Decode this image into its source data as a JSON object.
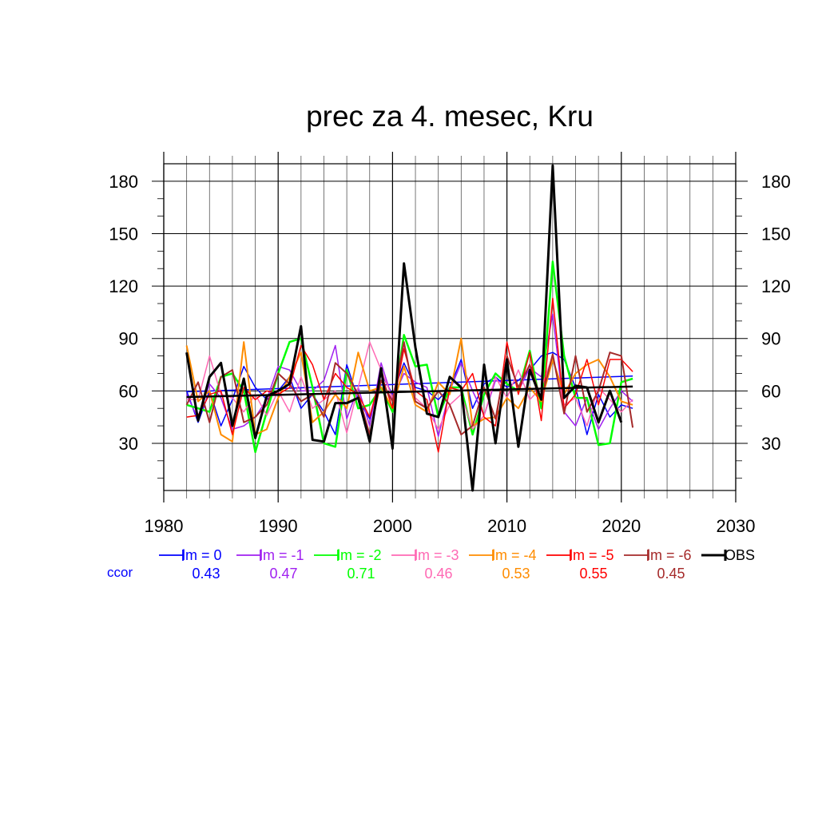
{
  "chart_data": {
    "type": "line",
    "title": "prec za 4. mesec, Kru",
    "xlim": [
      1980,
      2030
    ],
    "ylim": [
      3,
      190
    ],
    "x_ticks": [
      1980,
      1990,
      2000,
      2010,
      2020,
      2030
    ],
    "y_ticks": [
      30,
      60,
      90,
      120,
      150,
      180
    ],
    "grid": true,
    "legend_position": "bottom",
    "ccor_label": "ccor",
    "x": [
      1982,
      1983,
      1984,
      1985,
      1986,
      1987,
      1988,
      1989,
      1990,
      1991,
      1992,
      1993,
      1994,
      1995,
      1996,
      1997,
      1998,
      1999,
      2000,
      2001,
      2002,
      2003,
      2004,
      2005,
      2006,
      2007,
      2008,
      2009,
      2010,
      2011,
      2012,
      2013,
      2014,
      2015,
      2016,
      2017,
      2018,
      2019,
      2020,
      2021
    ],
    "series": [
      {
        "name": "lm = 0",
        "ccor": "0.43",
        "color": "#0000ff",
        "width": 1.5,
        "values": [
          60,
          42,
          60,
          40,
          55,
          74,
          62,
          55,
          60,
          68,
          50,
          58,
          48,
          35,
          75,
          55,
          44,
          70,
          58,
          76,
          62,
          60,
          55,
          62,
          78,
          50,
          64,
          68,
          62,
          66,
          72,
          80,
          82,
          78,
          62,
          35,
          58,
          45,
          52,
          50
        ],
        "trend": [
          59.5,
          68.5
        ]
      },
      {
        "name": "lm = -1",
        "ccor": "0.47",
        "color": "#a020f0",
        "width": 1.5,
        "values": [
          58,
          44,
          64,
          56,
          38,
          40,
          45,
          55,
          74,
          72,
          60,
          60,
          66,
          86,
          44,
          62,
          40,
          76,
          55,
          70,
          65,
          62,
          34,
          60,
          76,
          60,
          46,
          66,
          64,
          60,
          73,
          68,
          104,
          48,
          40,
          56,
          38,
          50,
          60,
          54
        ]
      },
      {
        "name": "lm = -2",
        "ccor": "0.71",
        "color": "#00ff00",
        "width": 2.5,
        "values": [
          52,
          50,
          48,
          68,
          70,
          60,
          25,
          48,
          70,
          88,
          90,
          62,
          30,
          28,
          72,
          50,
          52,
          62,
          48,
          92,
          74,
          75,
          45,
          62,
          62,
          35,
          58,
          70,
          64,
          60,
          83,
          50,
          134,
          80,
          56,
          56,
          29,
          30,
          65,
          67
        ]
      },
      {
        "name": "lm = -3",
        "ccor": "0.46",
        "color": "#ff69b4",
        "width": 1.5,
        "values": [
          55,
          55,
          80,
          58,
          56,
          48,
          58,
          46,
          60,
          48,
          68,
          50,
          55,
          60,
          36,
          62,
          88,
          72,
          56,
          86,
          56,
          50,
          38,
          52,
          58,
          38,
          46,
          68,
          56,
          72,
          55,
          62,
          80,
          52,
          56,
          40,
          62,
          55,
          48,
          55
        ]
      },
      {
        "name": "lm = -4",
        "ccor": "0.53",
        "color": "#ff8c00",
        "width": 2.0,
        "values": [
          86,
          54,
          60,
          35,
          31,
          88,
          35,
          38,
          56,
          68,
          82,
          42,
          48,
          58,
          50,
          82,
          60,
          62,
          50,
          74,
          52,
          48,
          65,
          58,
          90,
          40,
          44,
          45,
          56,
          50,
          62,
          54,
          78,
          58,
          70,
          75,
          78,
          68,
          54,
          52
        ]
      },
      {
        "name": "lm = -5",
        "ccor": "0.55",
        "color": "#ff0000",
        "width": 1.5,
        "values": [
          45,
          46,
          58,
          60,
          35,
          62,
          55,
          60,
          58,
          62,
          86,
          75,
          55,
          70,
          62,
          58,
          45,
          70,
          50,
          84,
          60,
          55,
          25,
          62,
          60,
          70,
          45,
          40,
          88,
          58,
          82,
          43,
          113,
          50,
          58,
          78,
          52,
          78,
          78,
          71
        ]
      },
      {
        "name": "lm = -6",
        "ccor": "0.45",
        "color": "#a52a2a",
        "width": 2.0,
        "values": [
          52,
          65,
          42,
          68,
          72,
          42,
          45,
          52,
          70,
          64,
          54,
          58,
          45,
          76,
          70,
          58,
          35,
          66,
          54,
          88,
          54,
          50,
          60,
          52,
          35,
          40,
          62,
          44,
          80,
          62,
          75,
          55,
          81,
          47,
          80,
          48,
          60,
          82,
          80,
          39
        ]
      },
      {
        "name": "OBS",
        "ccor": "",
        "color": "#000000",
        "width": 3.0,
        "values": [
          82,
          43,
          68,
          76,
          40,
          67,
          33,
          57,
          60,
          64,
          97,
          32,
          31,
          53,
          53,
          56,
          31,
          73,
          27,
          133,
          85,
          47,
          45,
          68,
          62,
          3,
          75,
          30,
          78,
          28,
          72,
          55,
          189,
          56,
          63,
          62,
          42,
          60,
          42,
          null
        ],
        "trend": [
          56.5,
          62.5
        ]
      }
    ]
  }
}
